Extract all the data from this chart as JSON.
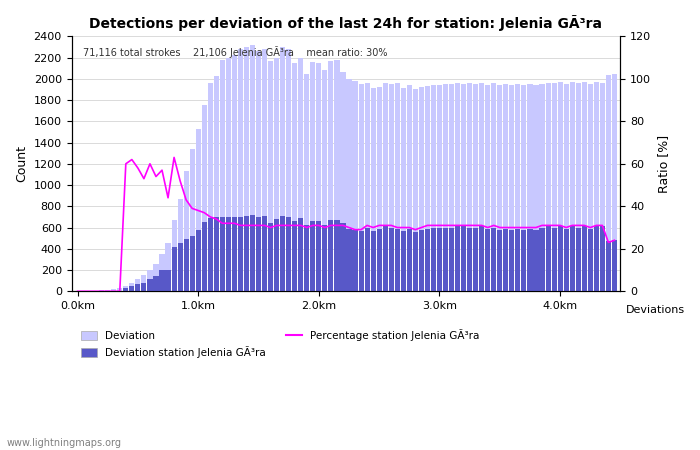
{
  "title": "Detections per deviation of the last 24h for station: Jelenia GÃ³ra",
  "annotation": "71,116 total strokes    21,106 Jelenia GÃ³ra    mean ratio: 30%",
  "ylabel_left": "Count",
  "ylabel_right": "Ratio [%]",
  "xlabel": "Deviations",
  "watermark": "www.lightningmaps.org",
  "ylim_left": [
    0,
    2400
  ],
  "ylim_right": [
    0,
    120
  ],
  "yticks_left": [
    0,
    200,
    400,
    600,
    800,
    1000,
    1200,
    1400,
    1600,
    1800,
    2000,
    2200,
    2400
  ],
  "yticks_right": [
    0,
    20,
    40,
    60,
    80,
    100,
    120
  ],
  "xtick_labels": [
    "0.0km",
    "1.0km",
    "2.0km",
    "3.0km",
    "4.0km"
  ],
  "xtick_positions": [
    0,
    20,
    40,
    60,
    80
  ],
  "deviation_total": [
    2,
    3,
    4,
    5,
    8,
    12,
    20,
    30,
    50,
    80,
    120,
    150,
    200,
    260,
    350,
    450,
    670,
    870,
    1130,
    1340,
    1530,
    1750,
    1960,
    2030,
    2180,
    2200,
    2220,
    2280,
    2300,
    2320,
    2260,
    2280,
    2170,
    2200,
    2300,
    2280,
    2150,
    2200,
    2050,
    2160,
    2150,
    2080,
    2170,
    2180,
    2060,
    2000,
    1980,
    1950,
    1960,
    1910,
    1920,
    1960,
    1950,
    1960,
    1910,
    1940,
    1900,
    1920,
    1930,
    1940,
    1940,
    1950,
    1950,
    1960,
    1950,
    1960,
    1950,
    1960,
    1940,
    1960,
    1940,
    1950,
    1940,
    1950,
    1940,
    1950,
    1940,
    1950,
    1960,
    1960,
    1970,
    1950,
    1970,
    1960,
    1970,
    1950,
    1970,
    1960,
    2040,
    2050
  ],
  "deviation_station": [
    0,
    0,
    0,
    0,
    0,
    0,
    0,
    0,
    30,
    50,
    70,
    80,
    120,
    140,
    200,
    200,
    420,
    450,
    490,
    520,
    580,
    650,
    690,
    700,
    700,
    700,
    700,
    700,
    710,
    720,
    700,
    710,
    640,
    680,
    710,
    700,
    660,
    690,
    620,
    660,
    660,
    620,
    670,
    670,
    640,
    590,
    580,
    570,
    600,
    570,
    590,
    610,
    600,
    590,
    570,
    590,
    560,
    580,
    590,
    600,
    600,
    600,
    600,
    610,
    610,
    600,
    600,
    610,
    590,
    600,
    580,
    590,
    580,
    590,
    580,
    590,
    580,
    600,
    610,
    600,
    610,
    590,
    610,
    600,
    610,
    590,
    610,
    610,
    470,
    480
  ],
  "ratio_line": [
    0,
    0,
    0,
    0,
    0,
    0,
    0,
    0,
    60,
    62,
    58,
    53,
    60,
    54,
    57,
    44,
    63,
    52,
    43,
    39,
    38,
    37,
    35,
    34,
    32,
    32,
    32,
    31,
    31,
    31,
    31,
    31,
    30,
    31,
    31,
    31,
    31,
    31,
    30,
    31,
    31,
    30,
    31,
    31,
    31,
    30,
    29,
    29,
    31,
    30,
    31,
    31,
    31,
    30,
    30,
    30,
    29,
    30,
    31,
    31,
    31,
    31,
    31,
    31,
    31,
    31,
    31,
    31,
    30,
    31,
    30,
    30,
    30,
    30,
    30,
    30,
    30,
    31,
    31,
    31,
    31,
    30,
    31,
    31,
    31,
    30,
    31,
    31,
    23,
    24
  ],
  "bar_color_light": "#c8c8ff",
  "bar_color_dark": "#5858c8",
  "line_color": "#ff00ff",
  "legend_label_dev": "Deviation",
  "legend_label_sta": "Deviation station Jelenia GÃ³ra",
  "legend_label_pct": "Percentage station Jelenia GÃ³ra",
  "background_color": "#ffffff",
  "grid_color": "#cccccc"
}
